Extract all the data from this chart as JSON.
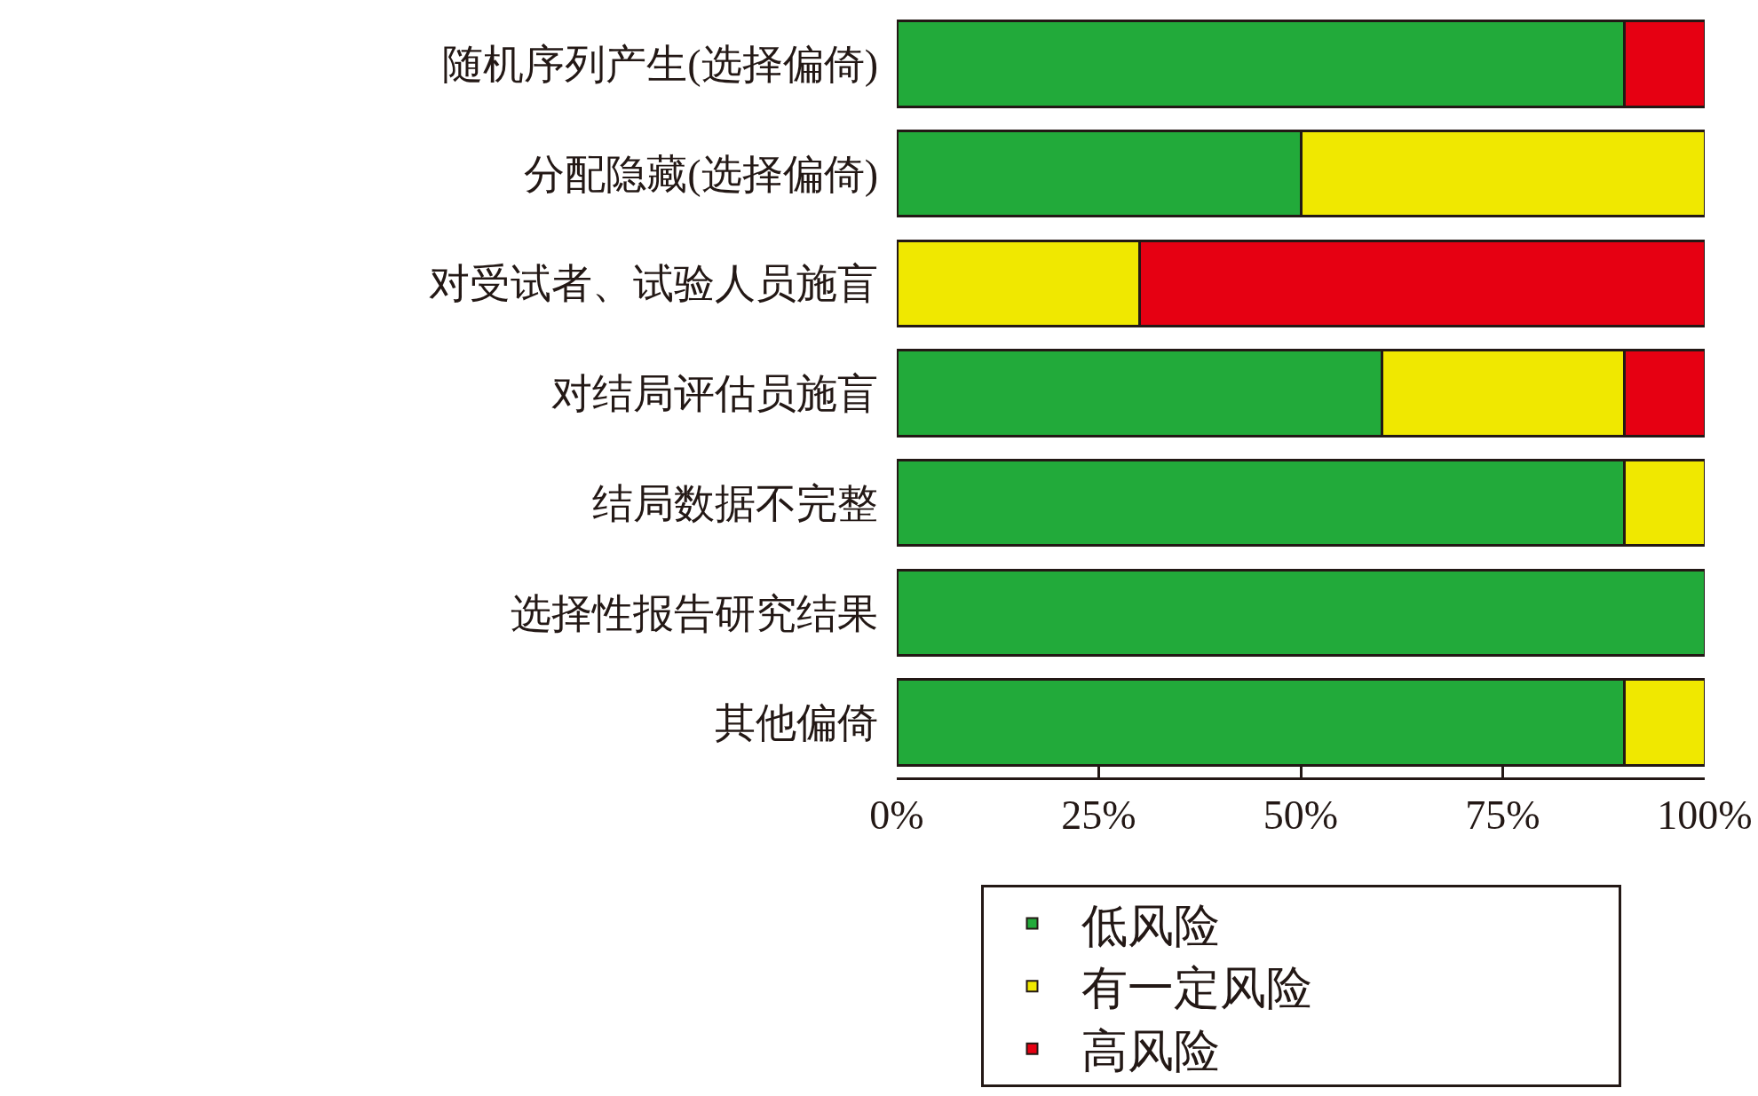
{
  "chart_data": {
    "type": "bar",
    "orientation": "horizontal",
    "stacked": true,
    "categories": [
      "随机序列产生(选择偏倚)",
      "分配隐藏(选择偏倚)",
      "对受试者、试验人员施盲",
      "对结局评估员施盲",
      "结局数据不完整",
      "选择性报告研究结果",
      "其他偏倚"
    ],
    "series": [
      {
        "name": "低风险",
        "color": "#22aa3a",
        "values": [
          90,
          50,
          null,
          60,
          90,
          100,
          90
        ]
      },
      {
        "name": "有一定风险",
        "color": "#f0e800",
        "values": [
          null,
          50,
          30,
          30,
          10,
          null,
          10
        ]
      },
      {
        "name": "高风险",
        "color": "#e60012",
        "values": [
          10,
          null,
          70,
          10,
          null,
          null,
          null
        ]
      }
    ],
    "xlim": [
      0,
      100
    ],
    "xticks": [
      {
        "value": 0,
        "label": "0%"
      },
      {
        "value": 25,
        "label": "25%"
      },
      {
        "value": 50,
        "label": "50%"
      },
      {
        "value": 75,
        "label": "75%"
      },
      {
        "value": 100,
        "label": "100%"
      }
    ],
    "grid": false,
    "legend": "bottom"
  }
}
